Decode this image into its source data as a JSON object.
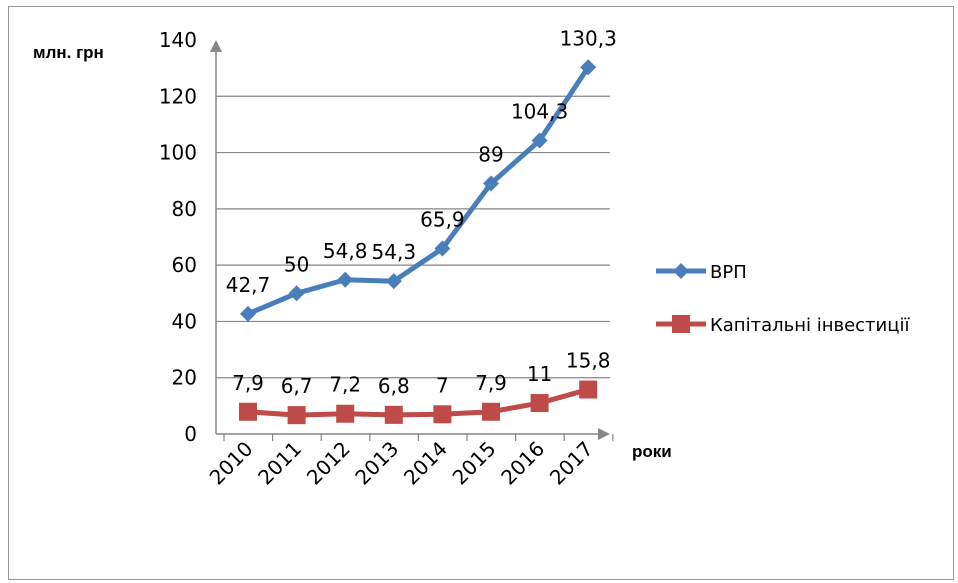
{
  "chart_data": {
    "type": "line",
    "categories": [
      "2010",
      "2011",
      "2012",
      "2013",
      "2014",
      "2015",
      "2016",
      "2017"
    ],
    "series": [
      {
        "name": "ВРП",
        "values": [
          42.7,
          50,
          54.8,
          54.3,
          65.9,
          89,
          104.3,
          130.3
        ],
        "labels": [
          "42,7",
          "50",
          "54,8",
          "54,3",
          "65,9",
          "89",
          "104,3",
          "130,3"
        ],
        "color": "#4a7ebb",
        "marker": "diamond"
      },
      {
        "name": "Капітальні інвестиції",
        "values": [
          7.9,
          6.7,
          7.2,
          6.8,
          7,
          7.9,
          11,
          15.8
        ],
        "labels": [
          "7,9",
          "6,7",
          "7,2",
          "6,8",
          "7",
          "7,9",
          "11",
          "15,8"
        ],
        "color": "#be4b48",
        "marker": "square"
      }
    ],
    "ylabel": "млн. грн",
    "xlabel": "роки",
    "ylim": [
      0,
      140
    ],
    "yticks": [
      "0",
      "20",
      "40",
      "60",
      "80",
      "100",
      "120",
      "140"
    ],
    "grid": true,
    "legend": "right"
  }
}
